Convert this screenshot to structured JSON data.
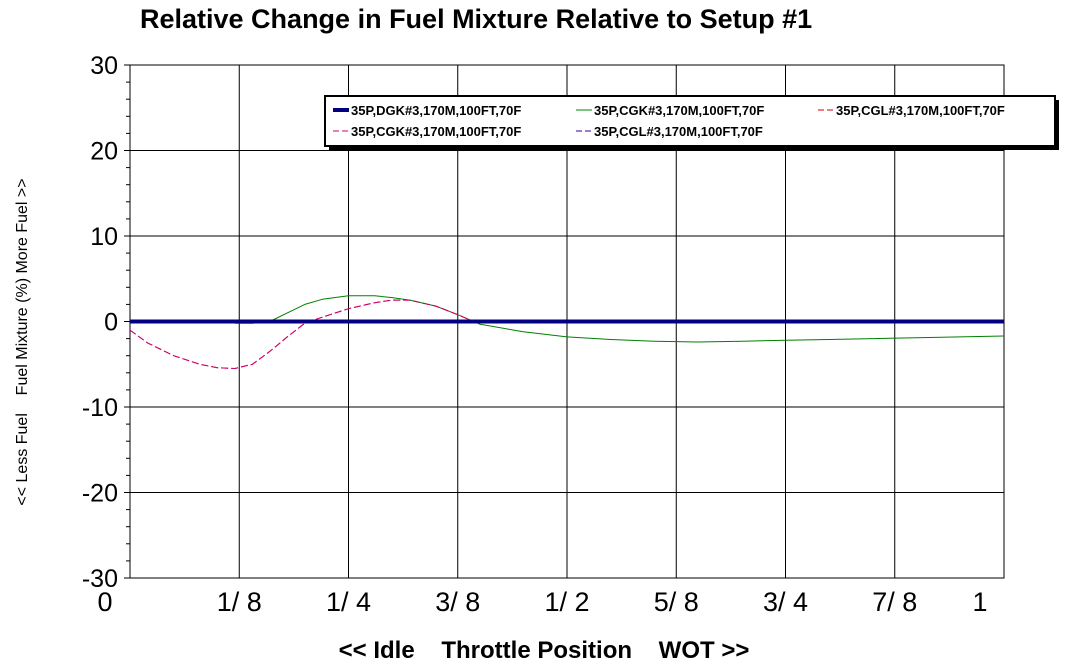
{
  "chart_data": {
    "type": "line",
    "title": "Relative Change in Fuel Mixture Relative to Setup #1",
    "xlabel": "<< Idle    Throttle Position    WOT >>",
    "ylabel": "<< Less Fuel    Fuel Mixture (%) More Fuel >>",
    "ylim": [
      -30,
      30
    ],
    "xlim": [
      0,
      1
    ],
    "yticks": [
      "30",
      "20",
      "10",
      "0",
      "-10",
      "-20",
      "-30"
    ],
    "xticks": [
      {
        "value": 0,
        "label": "0"
      },
      {
        "value": 0.125,
        "label": "1/ 8"
      },
      {
        "value": 0.25,
        "label": "1/ 4"
      },
      {
        "value": 0.375,
        "label": "3/ 8"
      },
      {
        "value": 0.5,
        "label": "1/ 2"
      },
      {
        "value": 0.625,
        "label": "5/ 8"
      },
      {
        "value": 0.75,
        "label": "3/ 4"
      },
      {
        "value": 0.875,
        "label": "7/ 8"
      },
      {
        "value": 1,
        "label": "1"
      }
    ],
    "grid": true,
    "legend_position": "top-right",
    "series": [
      {
        "name": "35P,DGK#3,170M,100FT,70F",
        "color": "#000080",
        "style": "solid",
        "width": 4,
        "x": [
          0,
          1
        ],
        "y": [
          0,
          0
        ]
      },
      {
        "name": "35P,CGK#3,170M,100FT,70F",
        "color": "#008000",
        "style": "solid",
        "width": 1,
        "x": [
          0.12,
          0.14,
          0.16,
          0.18,
          0.2,
          0.22,
          0.25,
          0.28,
          0.3,
          0.32,
          0.35,
          0.375,
          0.4,
          0.45,
          0.5,
          0.55,
          0.6,
          0.65,
          0.7,
          0.75,
          0.8,
          0.85,
          0.9,
          0.95,
          1.0
        ],
        "y": [
          -0.2,
          -0.2,
          0.0,
          1.0,
          2.0,
          2.6,
          3.0,
          3.0,
          2.8,
          2.5,
          1.8,
          0.8,
          -0.3,
          -1.2,
          -1.8,
          -2.1,
          -2.3,
          -2.4,
          -2.3,
          -2.2,
          -2.1,
          -2.0,
          -1.9,
          -1.8,
          -1.7
        ]
      },
      {
        "name": "35P,CGL#3,170M,100FT,70F",
        "color": "#cc0000",
        "style": "dashed",
        "width": 1,
        "x": [
          0,
          0.02,
          0.05,
          0.08,
          0.1,
          0.12,
          0.14,
          0.16,
          0.18,
          0.2,
          0.22,
          0.25,
          0.28,
          0.3,
          0.32,
          0.35,
          0.375,
          0.4
        ],
        "y": [
          -1.0,
          -2.5,
          -4.0,
          -5.0,
          -5.4,
          -5.5,
          -5.0,
          -3.5,
          -1.8,
          -0.2,
          0.5,
          1.5,
          2.2,
          2.5,
          2.5,
          1.8,
          0.8,
          -0.3
        ]
      },
      {
        "name": "35P,CGK#3,170M,100FT,70F",
        "color": "#cc0077",
        "style": "dashed",
        "width": 1,
        "x": [
          0,
          0.02,
          0.05,
          0.08,
          0.1,
          0.12,
          0.14,
          0.16,
          0.18,
          0.2,
          0.22,
          0.25,
          0.28,
          0.3,
          0.32,
          0.35,
          0.375,
          0.4
        ],
        "y": [
          -1.0,
          -2.5,
          -4.0,
          -5.0,
          -5.4,
          -5.5,
          -5.0,
          -3.5,
          -1.8,
          -0.2,
          0.5,
          1.5,
          2.2,
          2.5,
          2.5,
          1.8,
          0.8,
          -0.3
        ]
      },
      {
        "name": "35P,CGL#3,170M,100FT,70F",
        "color": "#330099",
        "style": "dashed",
        "width": 1,
        "x": [],
        "y": []
      }
    ]
  }
}
